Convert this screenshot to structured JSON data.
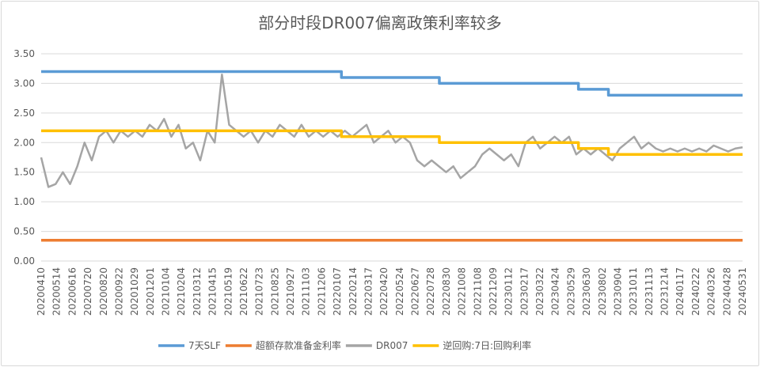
{
  "chart_data": {
    "type": "line",
    "title": "部分时段DR007偏离政策利率较多",
    "xlabel": "",
    "ylabel": "",
    "ylim": [
      0,
      3.5
    ],
    "yticks": [
      "0.00",
      "0.50",
      "1.00",
      "1.50",
      "2.00",
      "2.50",
      "3.00",
      "3.50"
    ],
    "grid": true,
    "legend_position": "bottom",
    "x_tick_labels": [
      "20200410",
      "20200514",
      "20200616",
      "20200720",
      "20200820",
      "20200922",
      "20201029",
      "20201201",
      "20210104",
      "20210204",
      "20210312",
      "20210415",
      "20210519",
      "20210622",
      "20210723",
      "20210825",
      "20210927",
      "20211103",
      "20211206",
      "20220107",
      "20220214",
      "20220317",
      "20220420",
      "20220524",
      "20220627",
      "20220728",
      "20220830",
      "20221008",
      "20221108",
      "20221209",
      "20230112",
      "20230217",
      "20230322",
      "20230424",
      "20230529",
      "20230630",
      "20230802",
      "20230904",
      "20231011",
      "20231113",
      "20231214",
      "20240117",
      "20240222",
      "20240326",
      "20240428",
      "20240531"
    ],
    "series": [
      {
        "name": "7天SLF",
        "color": "#5b9bd5",
        "kind": "step",
        "steps": [
          {
            "from": "20200410",
            "value": 3.2
          },
          {
            "from": "20220117",
            "value": 3.1
          },
          {
            "from": "20220815",
            "value": 3.0
          },
          {
            "from": "20230613",
            "value": 2.9
          },
          {
            "from": "20230815",
            "value": 2.8
          }
        ]
      },
      {
        "name": "超额存款准备金利率",
        "color": "#ed7d31",
        "kind": "step",
        "steps": [
          {
            "from": "20200410",
            "value": 0.35
          }
        ]
      },
      {
        "name": "DR007",
        "color": "#a5a5a5",
        "kind": "line",
        "values": [
          1.75,
          1.25,
          1.3,
          1.5,
          1.3,
          1.6,
          2.0,
          1.7,
          2.1,
          2.2,
          2.0,
          2.2,
          2.1,
          2.2,
          2.1,
          2.3,
          2.2,
          2.4,
          2.1,
          2.3,
          1.9,
          2.0,
          1.7,
          2.2,
          2.0,
          3.15,
          2.3,
          2.2,
          2.1,
          2.2,
          2.0,
          2.2,
          2.1,
          2.3,
          2.2,
          2.1,
          2.3,
          2.1,
          2.2,
          2.1,
          2.2,
          2.1,
          2.2,
          2.1,
          2.2,
          2.3,
          2.0,
          2.1,
          2.2,
          2.0,
          2.1,
          2.0,
          1.7,
          1.6,
          1.7,
          1.6,
          1.5,
          1.6,
          1.4,
          1.5,
          1.6,
          1.8,
          1.9,
          1.8,
          1.7,
          1.8,
          1.6,
          2.0,
          2.1,
          1.9,
          2.0,
          2.1,
          2.0,
          2.1,
          1.8,
          1.9,
          1.8,
          1.9,
          1.8,
          1.7,
          1.9,
          2.0,
          2.1,
          1.9,
          2.0,
          1.9,
          1.85,
          1.9,
          1.85,
          1.9,
          1.85,
          1.9,
          1.85,
          1.95,
          1.9,
          1.85,
          1.9,
          1.92
        ]
      },
      {
        "name": "逆回购:7日:回购利率",
        "color": "#ffc000",
        "kind": "step",
        "steps": [
          {
            "from": "20200410",
            "value": 2.2
          },
          {
            "from": "20220117",
            "value": 2.1
          },
          {
            "from": "20220815",
            "value": 2.0
          },
          {
            "from": "20230613",
            "value": 1.9
          },
          {
            "from": "20230815",
            "value": 1.8
          }
        ]
      }
    ]
  }
}
